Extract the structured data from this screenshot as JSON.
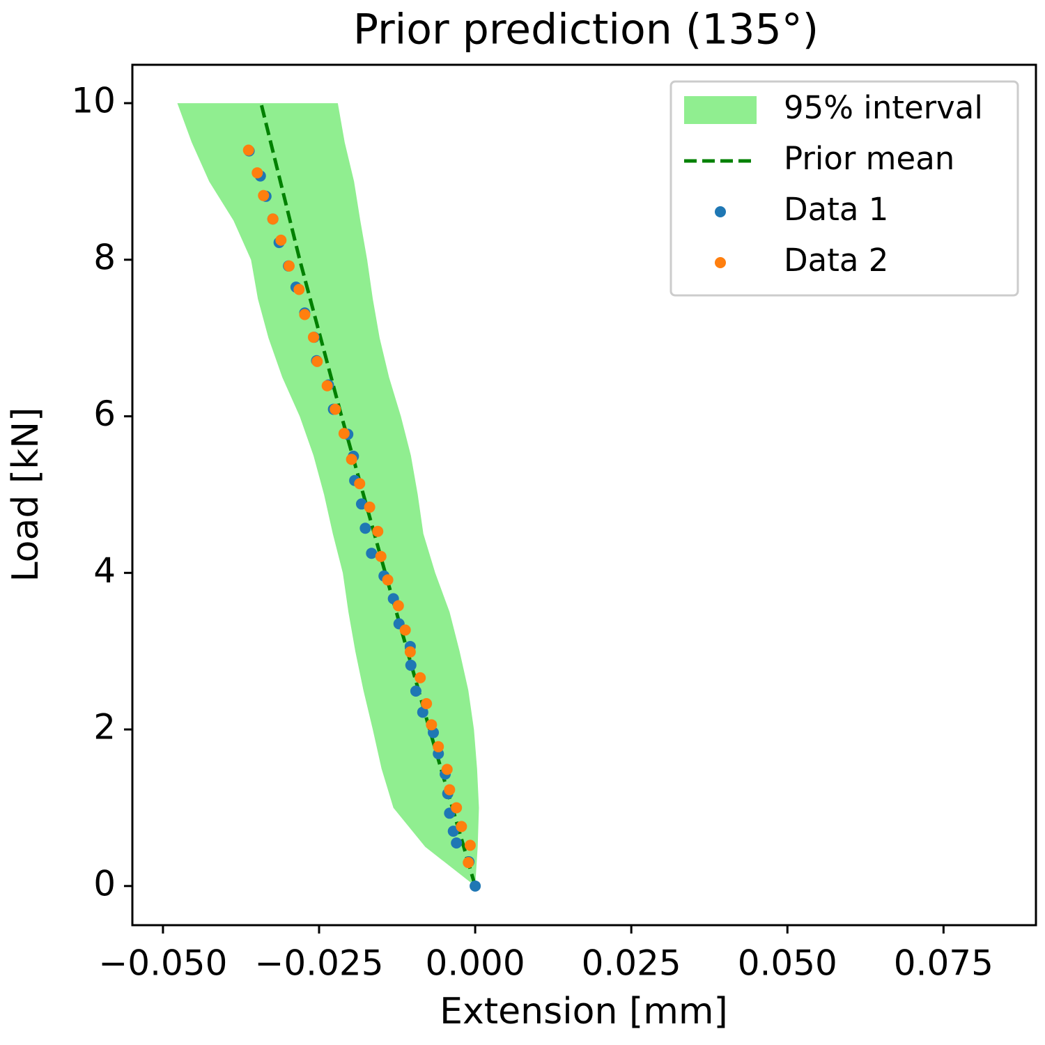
{
  "chart_data": {
    "type": "scatter",
    "title": "Prior prediction (135°)",
    "x_label": "Extension [mm]",
    "y_label": "Load [kN]",
    "xlim": [
      -0.0549,
      0.0898
    ],
    "ylim": [
      -0.5,
      10.49
    ],
    "xticks": [
      {
        "value": -0.05,
        "label": "−0.050"
      },
      {
        "value": -0.025,
        "label": "−0.025"
      },
      {
        "value": 0,
        "label": "0.000"
      },
      0.025,
      {
        "value": 0.05,
        "label": "0.050"
      },
      0.075
    ],
    "yticks": [
      0,
      2,
      4,
      6,
      8,
      10
    ],
    "legend": "upper right",
    "series": [
      {
        "name": "95% interval",
        "kind": "band",
        "color": "#90ee90",
        "y": [
          0,
          0.5,
          1,
          1.5,
          2,
          2.5,
          3,
          3.5,
          4,
          4.5,
          5,
          5.5,
          6,
          6.5,
          7,
          7.5,
          8,
          8.5,
          9,
          9.5,
          10
        ],
        "lower": [
          0,
          -0.008,
          -0.0131,
          -0.015,
          -0.0164,
          -0.0179,
          -0.0192,
          -0.0203,
          -0.0212,
          -0.0228,
          -0.0242,
          -0.0259,
          -0.0281,
          -0.0309,
          -0.0331,
          -0.0348,
          -0.0359,
          -0.0387,
          -0.0426,
          -0.0454,
          -0.0477
        ],
        "upper": [
          0,
          0.0004,
          0.0006,
          0.0003,
          -0.0002,
          -0.0011,
          -0.0025,
          -0.0041,
          -0.0064,
          -0.0083,
          -0.0092,
          -0.0103,
          -0.0119,
          -0.0138,
          -0.0153,
          -0.0164,
          -0.0173,
          -0.0184,
          -0.0194,
          -0.0209,
          -0.022
        ]
      },
      {
        "name": "Prior mean",
        "kind": "line",
        "color": "#008000",
        "x": [
          0,
          -0.0073,
          -0.0144,
          -0.0214,
          -0.0281,
          -0.0343
        ],
        "y": [
          0,
          2,
          4,
          6,
          8,
          10
        ]
      },
      {
        "name": "Data 1",
        "kind": "points",
        "color": "#1f77b4",
        "x": [
          0,
          -0.001,
          -0.003,
          -0.0035,
          -0.0041,
          -0.0044,
          -0.0048,
          -0.0059,
          -0.0067,
          -0.0084,
          -0.0095,
          -0.0103,
          -0.0104,
          -0.0122,
          -0.0131,
          -0.0146,
          -0.0166,
          -0.0176,
          -0.0182,
          -0.0193,
          -0.0195,
          -0.0204,
          -0.0227,
          -0.0235,
          -0.0254,
          -0.0258,
          -0.0273,
          -0.0287,
          -0.0299,
          -0.0314,
          -0.0324,
          -0.0335,
          -0.0344,
          -0.0362
        ],
        "y": [
          0,
          0.31,
          0.55,
          0.7,
          0.93,
          1.18,
          1.43,
          1.69,
          1.96,
          2.22,
          2.49,
          2.82,
          3.06,
          3.35,
          3.67,
          3.96,
          4.25,
          4.57,
          4.88,
          5.18,
          5.49,
          5.77,
          6.09,
          6.4,
          6.71,
          7.01,
          7.32,
          7.65,
          7.92,
          8.22,
          8.52,
          8.81,
          9.07,
          9.39
        ]
      },
      {
        "name": "Data 2",
        "kind": "points",
        "color": "#ff7f0e",
        "x": [
          -0.0011,
          -0.0008,
          -0.0022,
          -0.003,
          -0.0041,
          -0.0045,
          -0.0059,
          -0.007,
          -0.0078,
          -0.0088,
          -0.0104,
          -0.0112,
          -0.0123,
          -0.014,
          -0.0151,
          -0.0156,
          -0.0169,
          -0.0185,
          -0.0198,
          -0.021,
          -0.0224,
          -0.0237,
          -0.0253,
          -0.0259,
          -0.0273,
          -0.0282,
          -0.0298,
          -0.0311,
          -0.0324,
          -0.0339,
          -0.0349,
          -0.0363
        ],
        "y": [
          0.3,
          0.52,
          0.76,
          1,
          1.23,
          1.49,
          1.78,
          2.06,
          2.33,
          2.66,
          2.99,
          3.27,
          3.58,
          3.91,
          4.21,
          4.53,
          4.84,
          5.14,
          5.45,
          5.78,
          6.09,
          6.39,
          6.7,
          7.01,
          7.3,
          7.62,
          7.92,
          8.25,
          8.52,
          8.82,
          9.11,
          9.4
        ]
      }
    ]
  }
}
